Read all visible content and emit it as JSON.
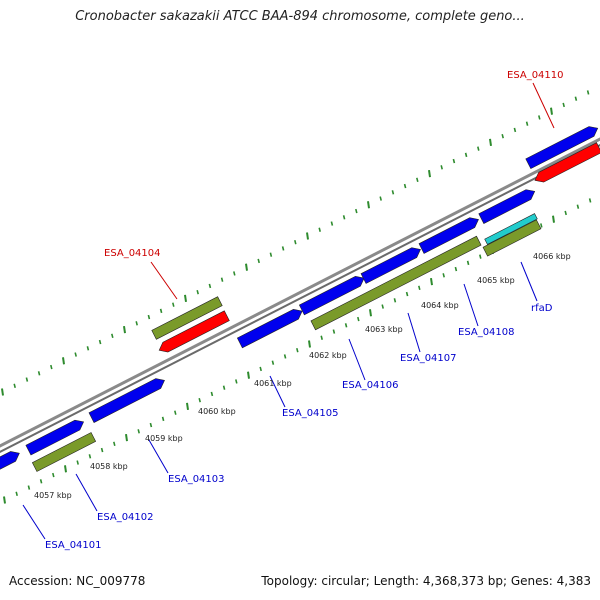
{
  "title": "Cronobacter sakazakii ATCC BAA-894 chromosome, complete geno...",
  "footer": {
    "accession": "Accession: NC_009778",
    "summary": "Topology: circular; Length: 4,368,373 bp; Genes: 4,383"
  },
  "colors": {
    "forward_gene": "#0000ee",
    "reverse_gene": "#ff0000",
    "feature_olive": "#7a9a2a",
    "feature_cyan": "#22cccc",
    "backbone": "#888888",
    "ticks": "#2e8b2e",
    "label_blue": "#0000cc",
    "label_red": "#cc0000"
  },
  "scale_ticks": [
    {
      "label": "4057 kbp"
    },
    {
      "label": "4058 kbp"
    },
    {
      "label": "4059 kbp"
    },
    {
      "label": "4060 kbp"
    },
    {
      "label": "4061 kbp"
    },
    {
      "label": "4062 kbp"
    },
    {
      "label": "4063 kbp"
    },
    {
      "label": "4064 kbp"
    },
    {
      "label": "4065 kbp"
    },
    {
      "label": "4066 kbp"
    }
  ],
  "gene_labels": [
    {
      "label": "ESA_04101",
      "strand": "forward"
    },
    {
      "label": "ESA_04102",
      "strand": "forward"
    },
    {
      "label": "ESA_04103",
      "strand": "forward"
    },
    {
      "label": "ESA_04104",
      "strand": "reverse"
    },
    {
      "label": "ESA_04105",
      "strand": "forward"
    },
    {
      "label": "ESA_04106",
      "strand": "forward"
    },
    {
      "label": "ESA_04107",
      "strand": "forward"
    },
    {
      "label": "ESA_04108",
      "strand": "forward"
    },
    {
      "label": "rfaD",
      "strand": "forward"
    },
    {
      "label": "ESA_04110",
      "strand": "reverse"
    }
  ]
}
